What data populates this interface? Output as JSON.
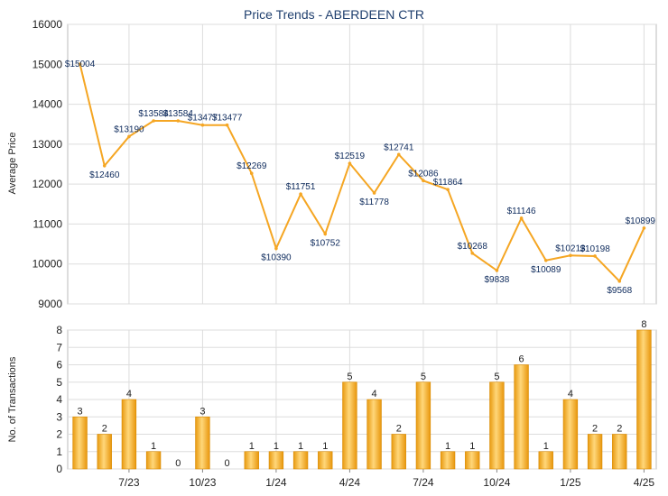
{
  "chart_data": [
    {
      "type": "line",
      "title": "Price Trends - ABERDEEN CTR",
      "ylabel": "Average Price",
      "ylim": [
        9000,
        16000
      ],
      "yticks": [
        9000,
        10000,
        11000,
        12000,
        13000,
        14000,
        15000,
        16000
      ],
      "grid": true,
      "color": "#f5a623",
      "series": [
        {
          "values": [
            15004,
            12460,
            13190,
            13584,
            13584,
            13477,
            13477,
            12269,
            10390,
            11751,
            10752,
            12519,
            11778,
            12741,
            12086,
            11864,
            10268,
            9838,
            11146,
            10089,
            10213,
            10198,
            9568,
            10899
          ],
          "labels": [
            "$15004",
            "$12460",
            "$13190",
            "$13584",
            "$13584",
            "$13477",
            "$13477",
            "$12269",
            "$10390",
            "$11751",
            "$10752",
            "$12519",
            "$11778",
            "$12741",
            "$12086",
            "$11864",
            "$10268",
            "$9838",
            "$11146",
            "$10089",
            "$10213",
            "$10198",
            "$9568",
            "$10899"
          ]
        }
      ]
    },
    {
      "type": "bar",
      "ylabel": "No. of Transactions",
      "ylim": [
        0,
        8
      ],
      "yticks": [
        0,
        1,
        2,
        3,
        4,
        5,
        6,
        7,
        8
      ],
      "grid": true,
      "color": "#f5a623",
      "x_tick_labels": [
        {
          "index": 2,
          "label": "7/23"
        },
        {
          "index": 5,
          "label": "10/23"
        },
        {
          "index": 8,
          "label": "1/24"
        },
        {
          "index": 11,
          "label": "4/24"
        },
        {
          "index": 14,
          "label": "7/24"
        },
        {
          "index": 17,
          "label": "10/24"
        },
        {
          "index": 20,
          "label": "1/25"
        },
        {
          "index": 23,
          "label": "4/25"
        }
      ],
      "values": [
        3,
        2,
        4,
        1,
        0,
        3,
        0,
        1,
        1,
        1,
        1,
        5,
        4,
        2,
        5,
        1,
        1,
        5,
        6,
        1,
        4,
        2,
        2,
        8
      ]
    }
  ]
}
